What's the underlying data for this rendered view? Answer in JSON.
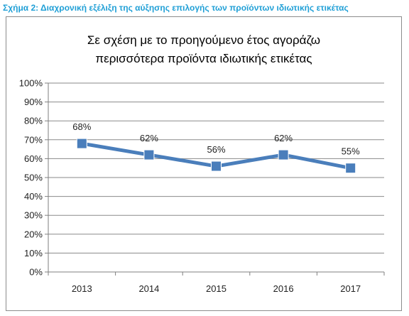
{
  "figure_caption": "Σχήμα 2: Διαχρονική εξέλιξη της αύξησης επιλογής των προϊόντων ιδιωτικής ετικέτας",
  "chart_data": {
    "type": "line",
    "title_lines": [
      "Σε σχέση με το προηγούμενο έτος αγοράζω",
      "περισσότερα προϊόντα ιδιωτικής ετικέτας"
    ],
    "categories": [
      "2013",
      "2014",
      "2015",
      "2016",
      "2017"
    ],
    "series": [
      {
        "values": [
          68,
          62,
          56,
          62,
          55
        ],
        "color": "#4a7ebb"
      }
    ],
    "data_labels": [
      "68%",
      "62%",
      "56%",
      "62%",
      "55%"
    ],
    "ylim": [
      0,
      100
    ],
    "yticks": [
      0,
      10,
      20,
      30,
      40,
      50,
      60,
      70,
      80,
      90,
      100
    ],
    "ytick_labels": [
      "0%",
      "10%",
      "20%",
      "30%",
      "40%",
      "50%",
      "60%",
      "70%",
      "80%",
      "90%",
      "100%"
    ],
    "grid": true,
    "legend": "none",
    "marker": "square"
  }
}
